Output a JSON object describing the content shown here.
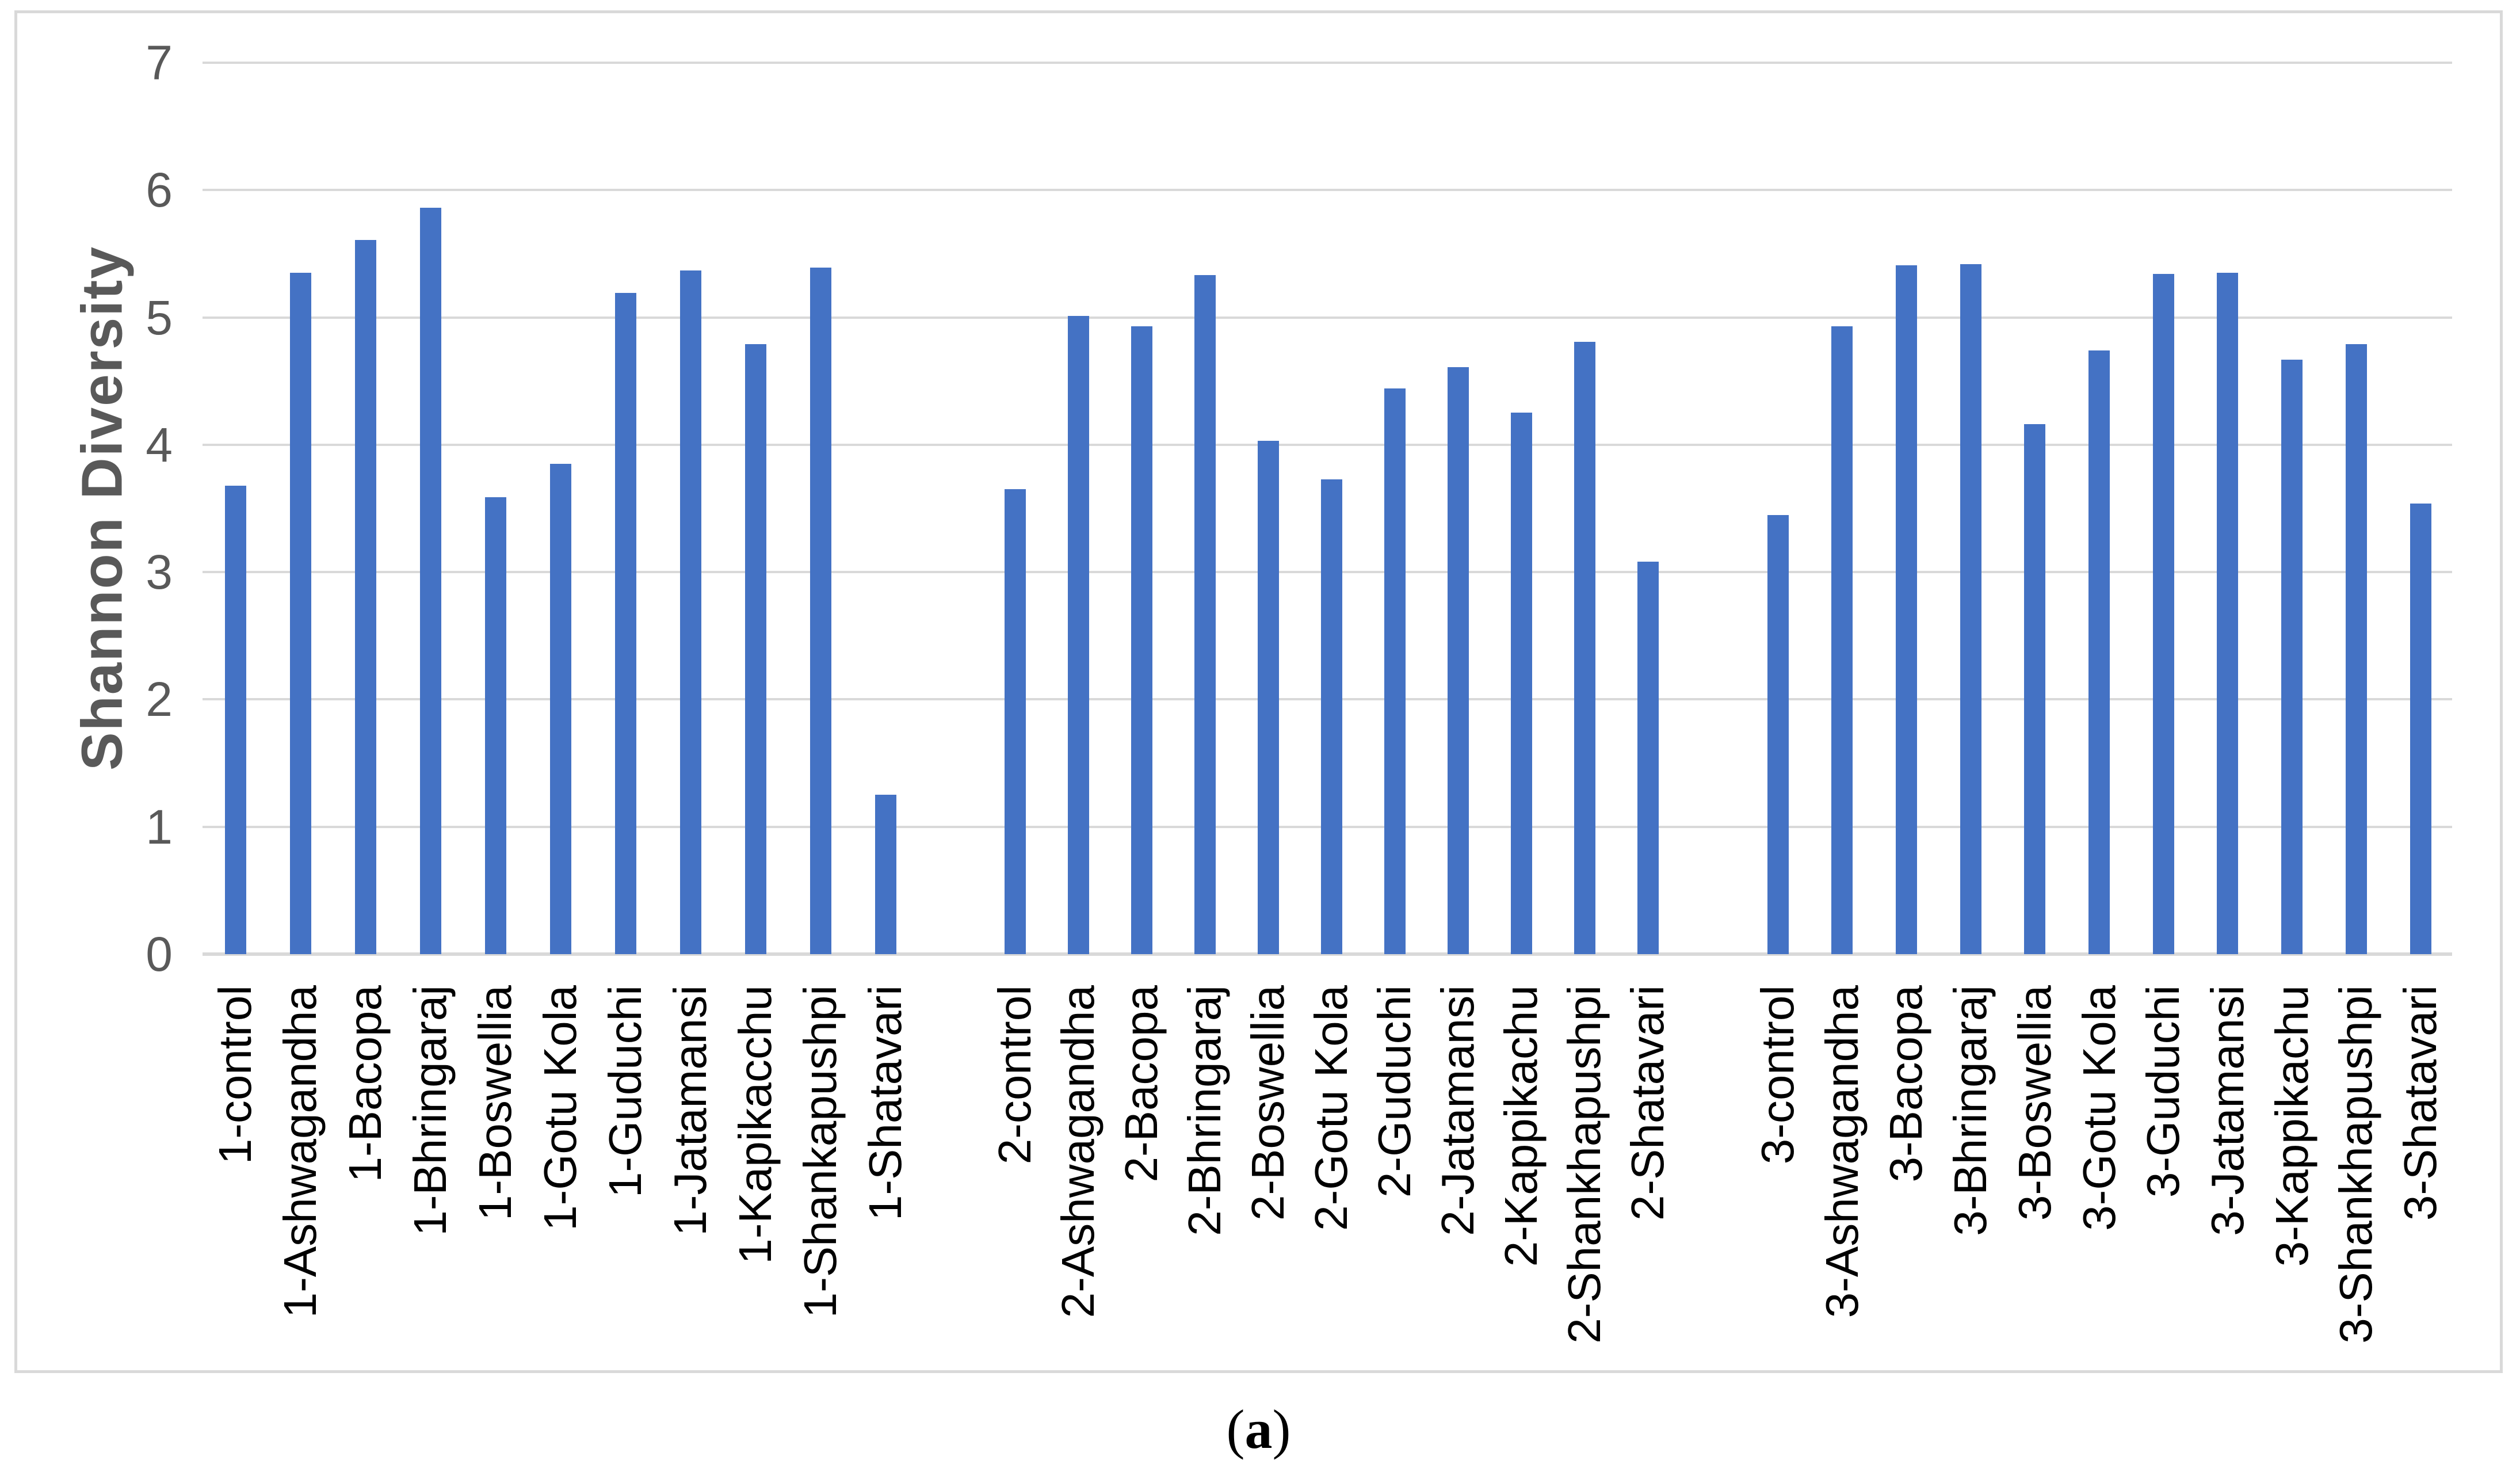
{
  "figure": {
    "caption_open": "(",
    "caption_letter": "a",
    "caption_close": ")"
  },
  "chart_data": {
    "type": "bar",
    "title": "",
    "xlabel": "",
    "ylabel": "Shannon Diversity",
    "ylim": [
      0,
      7
    ],
    "yticks": [
      "0",
      "1",
      "2",
      "3",
      "4",
      "5",
      "6",
      "7"
    ],
    "grid": true,
    "legend": false,
    "colors": {
      "bar": "#4472C4",
      "gridline": "#D9D9D9",
      "axis_line": "#D9D9D9",
      "y_tick_text": "#595959",
      "x_label_text": "#000000",
      "axis_title_text": "#595959",
      "frame_border": "#D9D9D9"
    },
    "groups": [
      {
        "name": "1",
        "categories": [
          "1-control",
          "1-Ashwagandha",
          "1-Bacopa",
          "1-Bhringaraj",
          "1-Boswellia",
          "1-Gotu Kola",
          "1-Guduchi",
          "1-Jatamansi",
          "1-Kapikacchu",
          "1-Shankapushpi",
          "1-Shatavari"
        ],
        "values": [
          3.68,
          5.35,
          5.61,
          5.86,
          3.59,
          3.85,
          5.19,
          5.37,
          4.79,
          5.39,
          1.25
        ]
      },
      {
        "name": "2",
        "categories": [
          "2-control",
          "2-Ashwagandha",
          "2-Bacopa",
          "2-Bhringaraj",
          "2-Boswellia",
          "2-Gotu Kola",
          "2-Guduchi",
          "2-Jatamansi",
          "2-Kappikachu",
          "2-Shankhapushpi",
          "2-Shatavari"
        ],
        "values": [
          3.65,
          5.01,
          4.93,
          5.33,
          4.03,
          3.73,
          4.44,
          4.61,
          4.25,
          4.81,
          3.08
        ]
      },
      {
        "name": "3",
        "categories": [
          "3-control",
          "3-Ashwagandha",
          "3-Bacopa",
          "3-Bhringaraj",
          "3-Boswellia",
          "3-Gotu Kola",
          "3-Guduchi",
          "3-Jatamansi",
          "3-Kappikachu",
          "3-Shankhapushpi",
          "3-Shatavari"
        ],
        "values": [
          3.45,
          4.93,
          5.41,
          5.42,
          4.16,
          4.74,
          5.34,
          5.35,
          4.67,
          4.79,
          3.54
        ]
      }
    ]
  }
}
